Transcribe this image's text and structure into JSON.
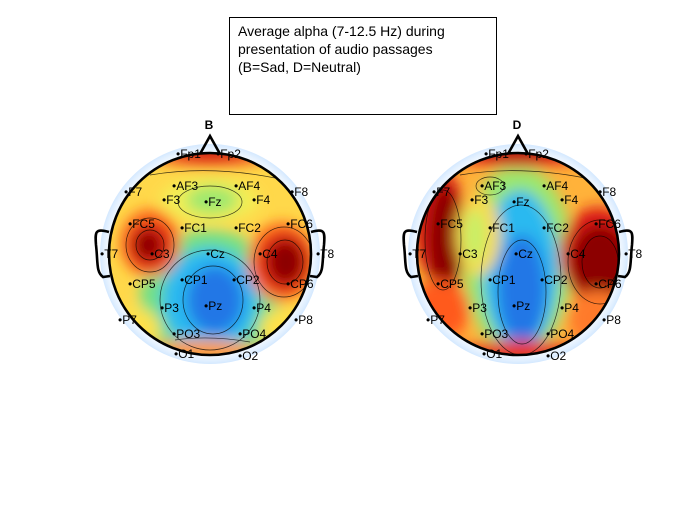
{
  "legend": {
    "lines": [
      "Average alpha (7-12.5 Hz) during",
      "presentation of audio passages",
      "(B=Sad, D=Neutral)"
    ]
  },
  "panels": [
    {
      "label": "B",
      "condition": "Sad"
    },
    {
      "label": "D",
      "condition": "Neutral"
    }
  ],
  "colormap": "jet",
  "electrodes": [
    "Fp1",
    "Fp2",
    "F7",
    "F8",
    "AF3",
    "AF4",
    "F3",
    "Fz",
    "F4",
    "FC5",
    "FC6",
    "T7",
    "T8",
    "FC1",
    "FC2",
    "C3",
    "Cz",
    "C4",
    "CP5",
    "CP6",
    "CP1",
    "CP2",
    "P7",
    "P8",
    "P3",
    "Pz",
    "P4",
    "PO3",
    "PO4",
    "O1",
    "O2"
  ]
}
